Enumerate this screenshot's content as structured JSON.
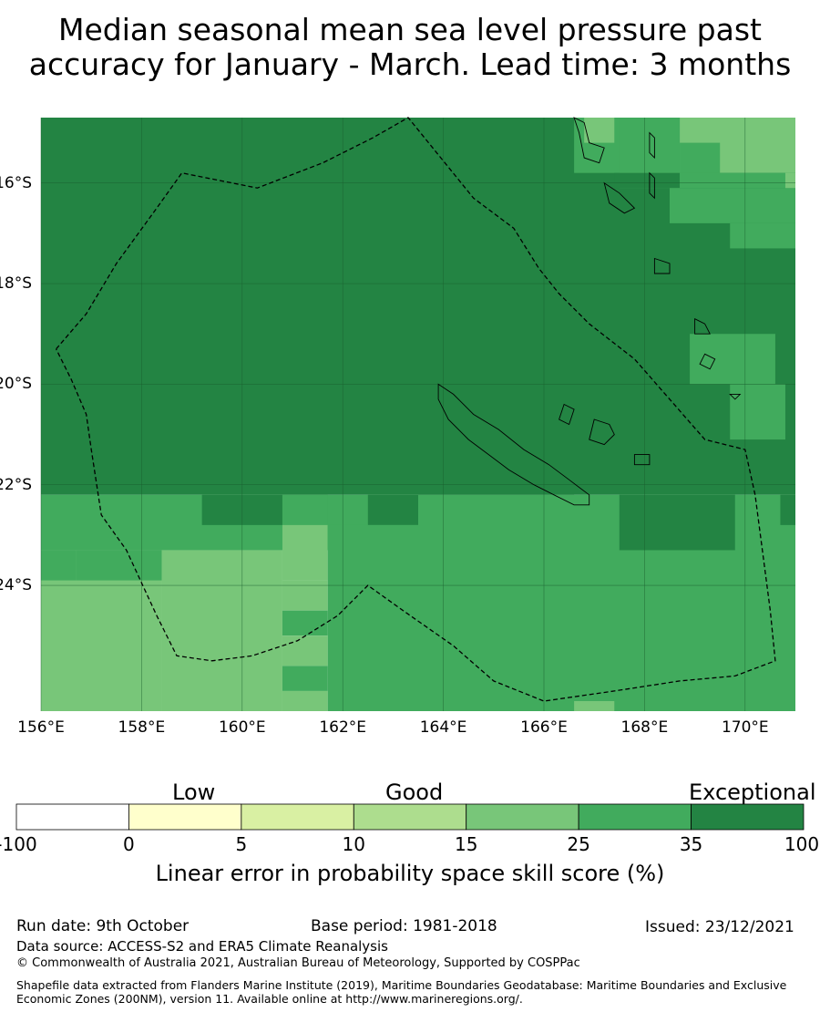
{
  "title": {
    "line1": "Median seasonal mean sea level pressure past",
    "line2": "accuracy for January - March. Lead time: 3 months"
  },
  "map": {
    "lon_range": [
      156,
      171
    ],
    "lat_range": [
      -26.5,
      -14.7
    ],
    "lat_ticks": [
      {
        "value": -16,
        "label": "16°S"
      },
      {
        "value": -18,
        "label": "18°S"
      },
      {
        "value": -20,
        "label": "20°S"
      },
      {
        "value": -22,
        "label": "22°S"
      },
      {
        "value": -24,
        "label": "24°S"
      }
    ],
    "lon_ticks": [
      {
        "value": 156,
        "label": "156°E"
      },
      {
        "value": 158,
        "label": "158°E"
      },
      {
        "value": 160,
        "label": "160°E"
      },
      {
        "value": 162,
        "label": "162°E"
      },
      {
        "value": 164,
        "label": "164°E"
      },
      {
        "value": 166,
        "label": "166°E"
      },
      {
        "value": 168,
        "label": "168°E"
      },
      {
        "value": 170,
        "label": "170°E"
      }
    ],
    "category_colors": {
      "c15": "#78c679",
      "c25": "#41ab5d",
      "c35": "#238443",
      "grid": "#1a5e2e"
    },
    "skill_cells": [
      {
        "lon": [
          156,
          171
        ],
        "lat": [
          -14.7,
          -22.2
        ],
        "cat": "c35"
      },
      {
        "lon": [
          156,
          163.5
        ],
        "lat": [
          -22.2,
          -23.3
        ],
        "cat": "c25"
      },
      {
        "lon": [
          159.2,
          160.8
        ],
        "lat": [
          -22.2,
          -22.8
        ],
        "cat": "c35"
      },
      {
        "lon": [
          162.5,
          166.6
        ],
        "lat": [
          -22.2,
          -22.8
        ],
        "cat": "c35"
      },
      {
        "lon": [
          163.5,
          171
        ],
        "lat": [
          -22.2,
          -26.5
        ],
        "cat": "c25"
      },
      {
        "lon": [
          167.5,
          169.8
        ],
        "lat": [
          -22.2,
          -23.3
        ],
        "cat": "c35"
      },
      {
        "lon": [
          170.7,
          171
        ],
        "lat": [
          -22.2,
          -22.8
        ],
        "cat": "c35"
      },
      {
        "lon": [
          156,
          158.4
        ],
        "lat": [
          -23.3,
          -26.5
        ],
        "cat": "c15"
      },
      {
        "lon": [
          156,
          156.7
        ],
        "lat": [
          -23.3,
          -23.9
        ],
        "cat": "c25"
      },
      {
        "lon": [
          156.7,
          158.4
        ],
        "lat": [
          -23.3,
          -23.9
        ],
        "cat": "c25"
      },
      {
        "lon": [
          158.4,
          160.8
        ],
        "lat": [
          -23.3,
          -26.5
        ],
        "cat": "c15"
      },
      {
        "lon": [
          160.8,
          161.7
        ],
        "lat": [
          -22.2,
          -22.8
        ],
        "cat": "c25"
      },
      {
        "lon": [
          160.8,
          161.7
        ],
        "lat": [
          -22.8,
          -23.9
        ],
        "cat": "c15"
      },
      {
        "lon": [
          161.7,
          163.5
        ],
        "lat": [
          -22.8,
          -26.5
        ],
        "cat": "c25"
      },
      {
        "lon": [
          160.8,
          161.7
        ],
        "lat": [
          -23.9,
          -24.5
        ],
        "cat": "c15"
      },
      {
        "lon": [
          160.8,
          161.7
        ],
        "lat": [
          -24.5,
          -25.0
        ],
        "cat": "c25"
      },
      {
        "lon": [
          160.8,
          161.7
        ],
        "lat": [
          -25.0,
          -25.6
        ],
        "cat": "c15"
      },
      {
        "lon": [
          160.8,
          161.7
        ],
        "lat": [
          -25.6,
          -26.1
        ],
        "cat": "c25"
      },
      {
        "lon": [
          160.8,
          161.7
        ],
        "lat": [
          -26.1,
          -26.5
        ],
        "cat": "c15"
      },
      {
        "lon": [
          166.6,
          167.4
        ],
        "lat": [
          -26.3,
          -26.5
        ],
        "cat": "c15"
      },
      {
        "lon": [
          166.6,
          168.7
        ],
        "lat": [
          -14.7,
          -15.8
        ],
        "cat": "c25"
      },
      {
        "lon": [
          166.8,
          167.4
        ],
        "lat": [
          -14.7,
          -15.2
        ],
        "cat": "c15"
      },
      {
        "lon": [
          168.7,
          171
        ],
        "lat": [
          -14.7,
          -15.8
        ],
        "cat": "c15"
      },
      {
        "lon": [
          168.7,
          169.5
        ],
        "lat": [
          -15.2,
          -15.8
        ],
        "cat": "c25"
      },
      {
        "lon": [
          167.5,
          168.7
        ],
        "lat": [
          -14.7,
          -16.1
        ],
        "cat": "c25"
      },
      {
        "lon": [
          167.4,
          168.7
        ],
        "lat": [
          -15.8,
          -16.1
        ],
        "cat": "c35"
      },
      {
        "lon": [
          168.7,
          171
        ],
        "lat": [
          -15.8,
          -16.1
        ],
        "cat": "c25"
      },
      {
        "lon": [
          168.5,
          171
        ],
        "lat": [
          -16.1,
          -16.8
        ],
        "cat": "c25"
      },
      {
        "lon": [
          169.7,
          171
        ],
        "lat": [
          -16.8,
          -17.3
        ],
        "cat": "c25"
      },
      {
        "lon": [
          170.8,
          171
        ],
        "lat": [
          -15.8,
          -16.1
        ],
        "cat": "c15"
      },
      {
        "lon": [
          168.9,
          170.6
        ],
        "lat": [
          -19.0,
          -20.0
        ],
        "cat": "c25"
      },
      {
        "lon": [
          169.7,
          170.8
        ],
        "lat": [
          -20.0,
          -21.1
        ],
        "cat": "c25"
      }
    ],
    "islands": [
      {
        "name": "new-caledonia",
        "points": [
          [
            163.9,
            -20.0
          ],
          [
            164.2,
            -20.2
          ],
          [
            164.6,
            -20.6
          ],
          [
            165.1,
            -20.9
          ],
          [
            165.6,
            -21.3
          ],
          [
            166.1,
            -21.6
          ],
          [
            166.5,
            -21.9
          ],
          [
            166.9,
            -22.2
          ],
          [
            166.9,
            -22.4
          ],
          [
            166.6,
            -22.4
          ],
          [
            166.2,
            -22.2
          ],
          [
            165.8,
            -22.0
          ],
          [
            165.3,
            -21.7
          ],
          [
            164.9,
            -21.4
          ],
          [
            164.5,
            -21.1
          ],
          [
            164.1,
            -20.7
          ],
          [
            163.9,
            -20.3
          ]
        ]
      },
      {
        "name": "ouvea",
        "points": [
          [
            166.4,
            -20.4
          ],
          [
            166.6,
            -20.5
          ],
          [
            166.5,
            -20.8
          ],
          [
            166.3,
            -20.7
          ]
        ]
      },
      {
        "name": "lifou",
        "points": [
          [
            167.0,
            -20.7
          ],
          [
            167.3,
            -20.8
          ],
          [
            167.4,
            -21.0
          ],
          [
            167.2,
            -21.2
          ],
          [
            166.9,
            -21.1
          ]
        ]
      },
      {
        "name": "mare",
        "points": [
          [
            167.8,
            -21.4
          ],
          [
            168.1,
            -21.4
          ],
          [
            168.1,
            -21.6
          ],
          [
            167.8,
            -21.6
          ]
        ]
      },
      {
        "name": "espiritu-santo",
        "points": [
          [
            166.6,
            -14.7
          ],
          [
            166.8,
            -14.8
          ],
          [
            166.9,
            -15.2
          ],
          [
            167.2,
            -15.3
          ],
          [
            167.1,
            -15.6
          ],
          [
            166.8,
            -15.5
          ],
          [
            166.7,
            -15.0
          ]
        ]
      },
      {
        "name": "malekula",
        "points": [
          [
            167.2,
            -16.0
          ],
          [
            167.5,
            -16.2
          ],
          [
            167.8,
            -16.5
          ],
          [
            167.6,
            -16.6
          ],
          [
            167.3,
            -16.4
          ]
        ]
      },
      {
        "name": "efate",
        "points": [
          [
            168.2,
            -17.5
          ],
          [
            168.5,
            -17.6
          ],
          [
            168.5,
            -17.8
          ],
          [
            168.2,
            -17.8
          ]
        ]
      },
      {
        "name": "erromango",
        "points": [
          [
            169.0,
            -18.7
          ],
          [
            169.2,
            -18.8
          ],
          [
            169.3,
            -19.0
          ],
          [
            169.0,
            -19.0
          ]
        ]
      },
      {
        "name": "tanna",
        "points": [
          [
            169.2,
            -19.4
          ],
          [
            169.4,
            -19.5
          ],
          [
            169.3,
            -19.7
          ],
          [
            169.1,
            -19.6
          ]
        ]
      },
      {
        "name": "aneityum",
        "points": [
          [
            169.7,
            -20.2
          ],
          [
            169.9,
            -20.2
          ],
          [
            169.8,
            -20.3
          ]
        ]
      },
      {
        "name": "maewo",
        "points": [
          [
            168.1,
            -15.0
          ],
          [
            168.2,
            -15.1
          ],
          [
            168.2,
            -15.5
          ],
          [
            168.1,
            -15.4
          ]
        ]
      },
      {
        "name": "pentecost",
        "points": [
          [
            168.1,
            -15.8
          ],
          [
            168.2,
            -15.9
          ],
          [
            168.2,
            -16.3
          ],
          [
            168.1,
            -16.2
          ]
        ]
      }
    ],
    "eez_boundary": [
      [
        156.3,
        -19.3
      ],
      [
        156.9,
        -18.6
      ],
      [
        157.5,
        -17.6
      ],
      [
        158.3,
        -16.5
      ],
      [
        158.8,
        -15.8
      ],
      [
        160.3,
        -16.1
      ],
      [
        161.6,
        -15.6
      ],
      [
        162.6,
        -15.1
      ],
      [
        163.3,
        -14.7
      ],
      [
        164.6,
        -16.3
      ],
      [
        165.4,
        -16.9
      ],
      [
        165.9,
        -17.7
      ],
      [
        166.3,
        -18.2
      ],
      [
        166.9,
        -18.8
      ],
      [
        167.8,
        -19.5
      ],
      [
        168.5,
        -20.3
      ],
      [
        169.2,
        -21.1
      ],
      [
        170.0,
        -21.3
      ],
      [
        170.2,
        -22.2
      ],
      [
        170.5,
        -24.5
      ],
      [
        170.6,
        -25.5
      ],
      [
        169.8,
        -25.8
      ],
      [
        168.7,
        -25.9
      ],
      [
        167.4,
        -26.1
      ],
      [
        166.0,
        -26.3
      ],
      [
        165.0,
        -25.9
      ],
      [
        164.2,
        -25.2
      ],
      [
        163.2,
        -24.5
      ],
      [
        162.5,
        -24.0
      ],
      [
        161.9,
        -24.6
      ],
      [
        161.1,
        -25.1
      ],
      [
        160.2,
        -25.4
      ],
      [
        159.4,
        -25.5
      ],
      [
        158.7,
        -25.4
      ],
      [
        158.3,
        -24.6
      ],
      [
        157.7,
        -23.3
      ],
      [
        157.2,
        -22.6
      ],
      [
        157.0,
        -21.3
      ],
      [
        156.9,
        -20.6
      ],
      [
        156.6,
        -19.9
      ]
    ]
  },
  "colorbar": {
    "categories": [
      "Low",
      "Good",
      "Exceptional"
    ],
    "colors": [
      "#ffffff",
      "#ffffcc",
      "#d9f0a3",
      "#addd8e",
      "#78c679",
      "#41ab5d",
      "#238443"
    ],
    "ticks": [
      "-100",
      "0",
      "5",
      "10",
      "15",
      "25",
      "35",
      "100"
    ],
    "label": "Linear error in probability space skill score (%)"
  },
  "footer": {
    "run_date": "Run date: 9th October",
    "base_period": "Base period: 1981-2018",
    "issued": "Issued: 23/12/2021",
    "data_source": "Data source: ACCESS-S2 and ERA5 Climate Reanalysis",
    "copyright": "© Commonwealth of Australia 2021, Australian Bureau of Meteorology, Supported by COSPPac",
    "shapefile": "Shapefile data extracted from Flanders Marine Institute (2019), Maritime Boundaries Geodatabase: Maritime Boundaries and Exclusive Economic Zones (200NM), version 11. Available online at http://www.marineregions.org/."
  }
}
